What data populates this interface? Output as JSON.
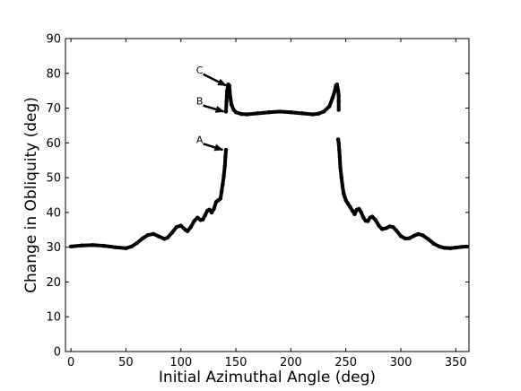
{
  "chart_data": {
    "type": "scatter",
    "xlabel": "Initial Azimuthal Angle (deg)",
    "ylabel": "Change in Obliquity (deg)",
    "xlim": [
      -5,
      362
    ],
    "ylim": [
      0,
      90
    ],
    "xticks": [
      "0",
      "50",
      "100",
      "150",
      "200",
      "250",
      "300",
      "350"
    ],
    "yticks": [
      "0",
      "10",
      "20",
      "30",
      "40",
      "50",
      "60",
      "70",
      "80",
      "90"
    ],
    "grid": false,
    "legend": false,
    "color": "#000000",
    "series": [
      {
        "points": [
          [
            0,
            30.2
          ],
          [
            10,
            30.5
          ],
          [
            20,
            30.6
          ],
          [
            30,
            30.4
          ],
          [
            40,
            30.0
          ],
          [
            50,
            29.7
          ],
          [
            55,
            30.2
          ],
          [
            60,
            31.2
          ],
          [
            65,
            32.5
          ],
          [
            70,
            33.5
          ],
          [
            75,
            33.8
          ],
          [
            80,
            33.1
          ],
          [
            85,
            32.4
          ],
          [
            88,
            32.8
          ],
          [
            92,
            34.2
          ],
          [
            96,
            35.8
          ],
          [
            100,
            36.2
          ],
          [
            104,
            35.0
          ],
          [
            106,
            34.6
          ],
          [
            109,
            35.8
          ],
          [
            112,
            37.5
          ],
          [
            115,
            38.5
          ],
          [
            118,
            37.8
          ],
          [
            120,
            38.0
          ],
          [
            122,
            39.2
          ],
          [
            124,
            40.5
          ],
          [
            126,
            40.8
          ],
          [
            128,
            40.0
          ],
          [
            130,
            41.0
          ],
          [
            132,
            43.0
          ],
          [
            134,
            43.5
          ],
          [
            136,
            44.0
          ],
          [
            137,
            46.0
          ],
          [
            138,
            48.0
          ],
          [
            139,
            50.5
          ],
          [
            140,
            53.5
          ],
          [
            140.5,
            56.0
          ],
          [
            141,
            58.0
          ],
          [
            141,
            69.0
          ],
          [
            141.5,
            72.0
          ],
          [
            142,
            75.0
          ],
          [
            143,
            76.8
          ],
          [
            144,
            76.5
          ],
          [
            145,
            73.0
          ],
          [
            146,
            71.0
          ],
          [
            148,
            69.5
          ],
          [
            150,
            68.8
          ],
          [
            155,
            68.3
          ],
          [
            160,
            68.2
          ],
          [
            170,
            68.5
          ],
          [
            180,
            68.8
          ],
          [
            190,
            69.0
          ],
          [
            200,
            68.8
          ],
          [
            210,
            68.5
          ],
          [
            220,
            68.2
          ],
          [
            225,
            68.4
          ],
          [
            230,
            69.0
          ],
          [
            235,
            70.5
          ],
          [
            238,
            73.0
          ],
          [
            240,
            75.0
          ],
          [
            241,
            76.5
          ],
          [
            242,
            76.8
          ],
          [
            243,
            75.0
          ],
          [
            243.5,
            73.5
          ],
          [
            243.5,
            72.0
          ],
          [
            243.5,
            69.5
          ],
          [
            243,
            61.0
          ],
          [
            243.5,
            60.0
          ],
          [
            244,
            58.0
          ],
          [
            244.5,
            56.0
          ],
          [
            245,
            53.0
          ],
          [
            246,
            50.0
          ],
          [
            247,
            47.5
          ],
          [
            248,
            45.5
          ],
          [
            249,
            44.5
          ],
          [
            250,
            43.5
          ],
          [
            252,
            42.5
          ],
          [
            254,
            41.5
          ],
          [
            256,
            40.5
          ],
          [
            258,
            39.5
          ],
          [
            260,
            40.8
          ],
          [
            262,
            41.0
          ],
          [
            264,
            40.0
          ],
          [
            266,
            38.5
          ],
          [
            268,
            37.6
          ],
          [
            270,
            37.5
          ],
          [
            272,
            38.5
          ],
          [
            274,
            38.8
          ],
          [
            277,
            37.8
          ],
          [
            280,
            36.2
          ],
          [
            283,
            35.2
          ],
          [
            287,
            35.5
          ],
          [
            290,
            36.0
          ],
          [
            293,
            35.8
          ],
          [
            296,
            34.8
          ],
          [
            300,
            33.2
          ],
          [
            304,
            32.5
          ],
          [
            308,
            32.6
          ],
          [
            312,
            33.3
          ],
          [
            316,
            33.8
          ],
          [
            320,
            33.4
          ],
          [
            325,
            32.3
          ],
          [
            330,
            31.0
          ],
          [
            335,
            30.2
          ],
          [
            340,
            29.8
          ],
          [
            345,
            29.7
          ],
          [
            350,
            29.9
          ],
          [
            355,
            30.1
          ],
          [
            360,
            30.2
          ]
        ]
      }
    ],
    "annotations": [
      {
        "text": "C",
        "text_at": [
          117,
          80
        ],
        "arrow_to": [
          141,
          76.5
        ]
      },
      {
        "text": "B",
        "text_at": [
          117,
          71
        ],
        "arrow_to": [
          139,
          69
        ]
      },
      {
        "text": "A",
        "text_at": [
          117,
          60
        ],
        "arrow_to": [
          138,
          58
        ]
      }
    ]
  }
}
